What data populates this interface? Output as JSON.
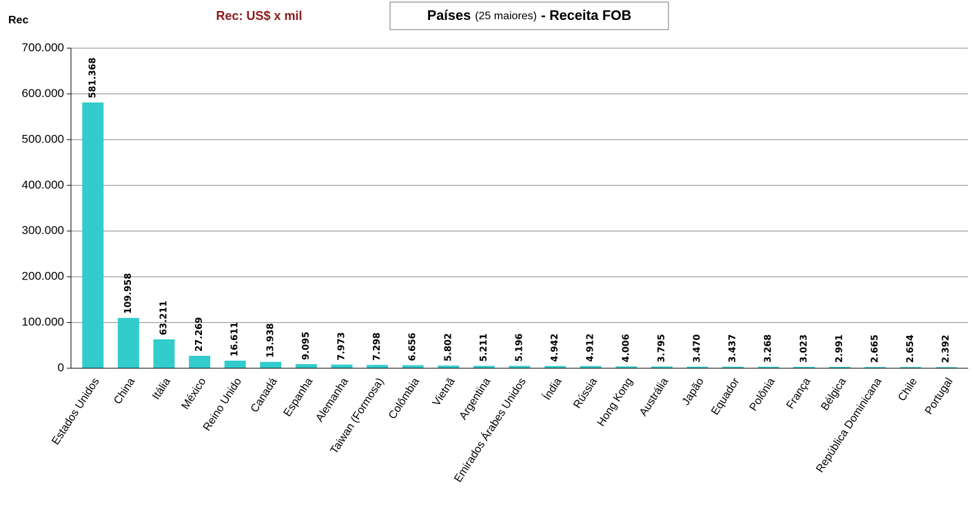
{
  "chart_data": {
    "type": "bar",
    "title": [
      "Países",
      "(25 maiores)",
      "- Receita FOB"
    ],
    "subtitle": "Rec: US$ x mil",
    "y_label": "Rec",
    "categories": [
      "Estados Unidos",
      "China",
      "Itália",
      "México",
      "Reino Unido",
      "Canadá",
      "Espanha",
      "Alemanha",
      "Taiwan (Formosa)",
      "Colômbia",
      "Vietnã",
      "Argentina",
      "Emirados Árabes Unidos",
      "Índia",
      "Rússia",
      "Hong Kong",
      "Austrália",
      "Japão",
      "Equador",
      "Polônia",
      "França",
      "Bélgica",
      "República Dominicana",
      "Chile",
      "Portugal"
    ],
    "values": [
      581368,
      109958,
      63211,
      27269,
      16611,
      13938,
      9095,
      7973,
      7298,
      6656,
      5802,
      5211,
      5196,
      4942,
      4912,
      4006,
      3795,
      3470,
      3437,
      3268,
      3023,
      2991,
      2665,
      2654,
      2392
    ],
    "value_labels": [
      "581.368",
      "109.958",
      "63.211",
      "27.269",
      "16.611",
      "13.938",
      "9.095",
      "7.973",
      "7.298",
      "6.656",
      "5.802",
      "5.211",
      "5.196",
      "4.942",
      "4.912",
      "4.006",
      "3.795",
      "3.470",
      "3.437",
      "3.268",
      "3.023",
      "2.991",
      "2.665",
      "2.654",
      "2.392"
    ],
    "color": "#33cccc",
    "ylim": [
      0,
      700000
    ],
    "yticks": [
      0,
      {
        "value": 100000,
        "label": "100.000"
      },
      {
        "value": 200000,
        "label": "200.000"
      },
      {
        "value": 300000,
        "label": "300.000"
      },
      {
        "value": 400000,
        "label": "400.000"
      },
      {
        "value": 500000,
        "label": "500.000"
      },
      {
        "value": 600000,
        "label": "600.000"
      },
      {
        "value": 700000,
        "label": "700.000"
      }
    ],
    "grid": true
  }
}
